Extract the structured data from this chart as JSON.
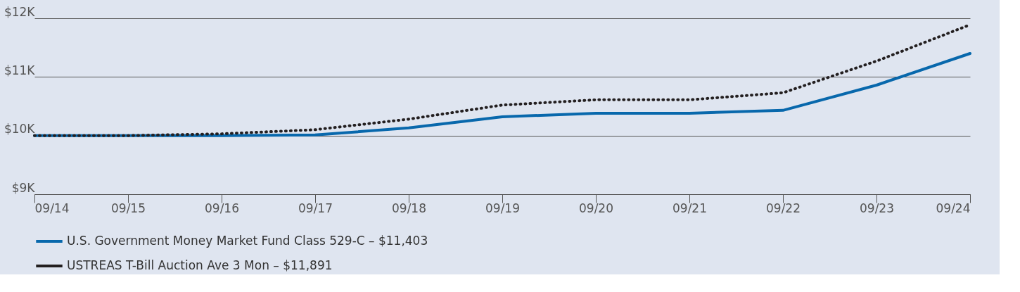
{
  "chart_data": {
    "type": "line",
    "categories": [
      "09/14",
      "09/15",
      "09/16",
      "09/17",
      "09/18",
      "09/19",
      "09/20",
      "09/21",
      "09/22",
      "09/23",
      "09/24"
    ],
    "series": [
      {
        "name": "U.S. Government Money Market Fund Class 529-C – $11,403",
        "color": "#0868ac",
        "line_style": "solid",
        "values": [
          10000,
          10000,
          10000,
          10010,
          10130,
          10320,
          10380,
          10380,
          10430,
          10860,
          11400
        ]
      },
      {
        "name": "USTREAS T-Bill Auction Ave 3 Mon – $11,891",
        "color": "#231f20",
        "line_style": "dotted",
        "values": [
          10000,
          10000,
          10030,
          10100,
          10280,
          10520,
          10610,
          10610,
          10730,
          11270,
          11890
        ]
      }
    ],
    "ylim": [
      9000,
      12000
    ],
    "yticks": [
      {
        "value": 9000,
        "label": "$9K"
      },
      {
        "value": 10000,
        "label": "$10K"
      },
      {
        "value": 11000,
        "label": "$11K"
      },
      {
        "value": 12000,
        "label": "$12K"
      }
    ],
    "grid": "y",
    "legend": "bottom left"
  }
}
